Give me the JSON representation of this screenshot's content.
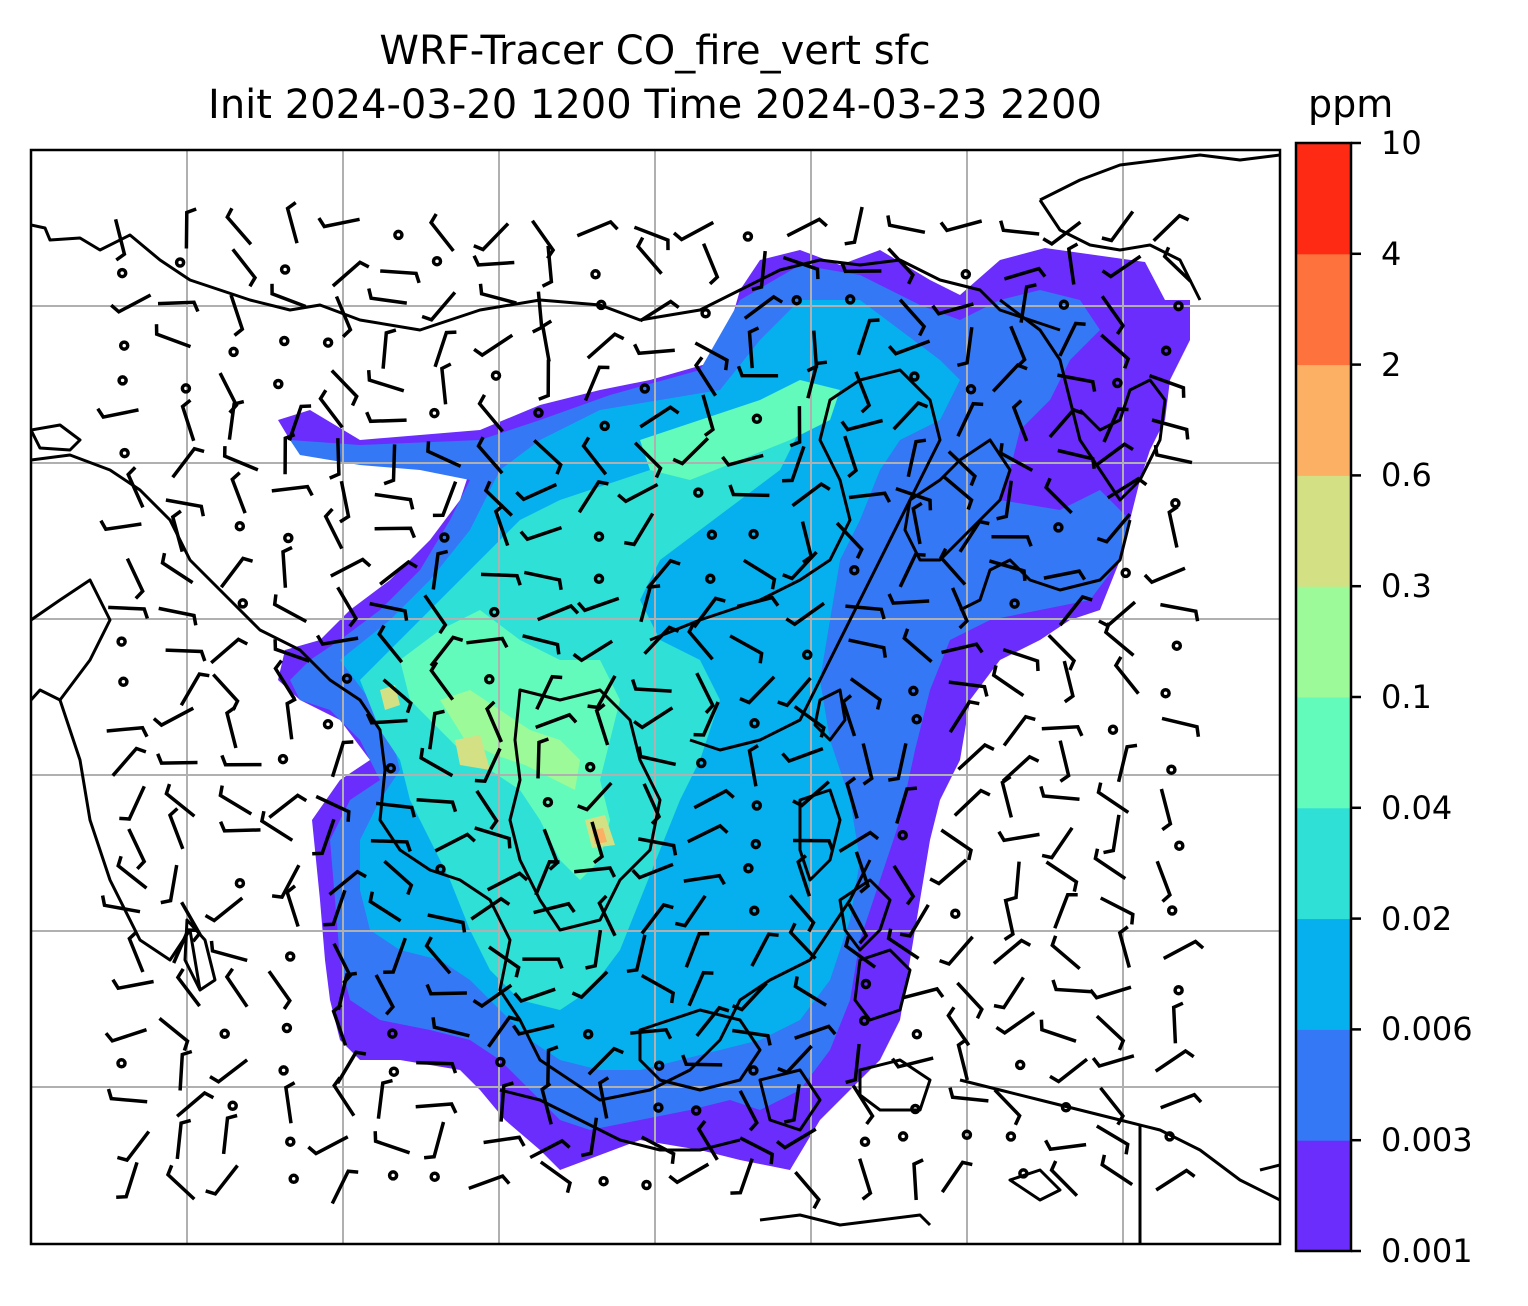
{
  "title_line1": "WRF-Tracer CO_fire_vert sfc",
  "title_line2": "Init 2024-03-20 1200 Time 2024-03-23 2200",
  "colorbar": {
    "unit": "ppm",
    "levels": [
      "0.001",
      "0.003",
      "0.006",
      "0.02",
      "0.04",
      "0.1",
      "0.3",
      "0.6",
      "2",
      "4",
      "10"
    ],
    "colors": [
      "#6a2dfb",
      "#3478f6",
      "#06b0ee",
      "#2fe0d6",
      "#62fbbc",
      "#9cfa99",
      "#d3e083",
      "#fcb064",
      "#fe723d",
      "#ff2a14"
    ]
  },
  "map": {
    "gridlines": true,
    "map_content": "regional map of Asia with coastlines, country borders, CO tracer filled contours and wind barbs"
  }
}
